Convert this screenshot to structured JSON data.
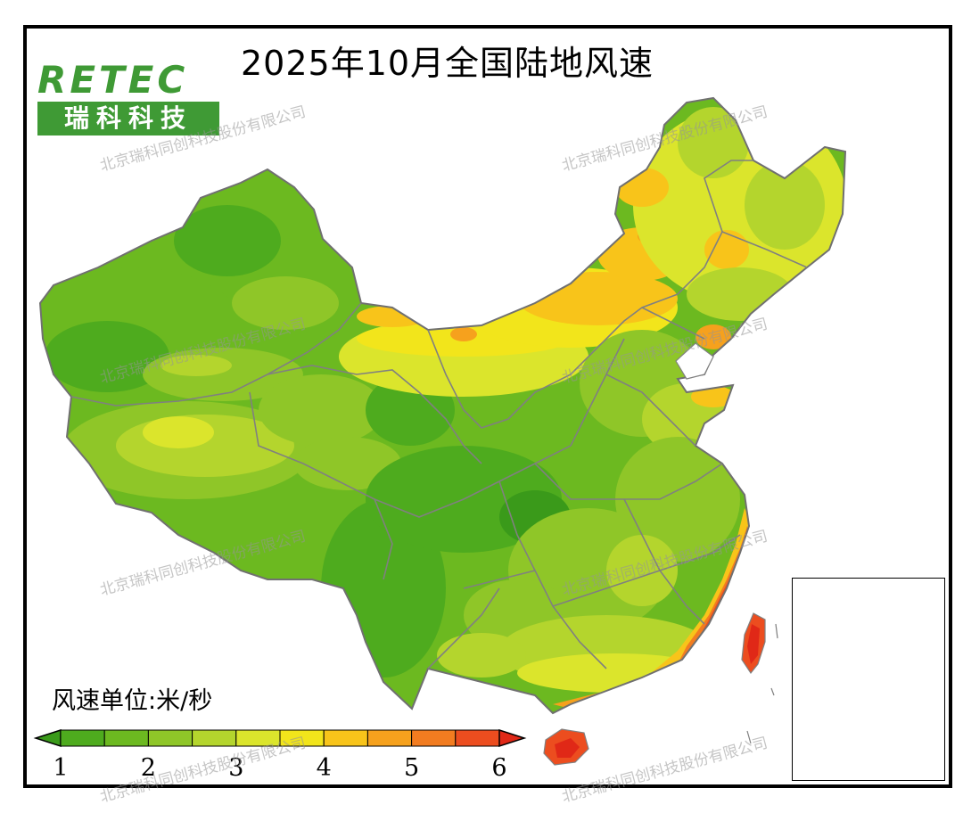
{
  "title": "2025年10月全国陆地风速",
  "logo": {
    "en": "RETEC",
    "cn": "瑞科科技"
  },
  "legend": {
    "unit_label": "风速单位:米/秒",
    "ticks": [
      "1",
      "2",
      "3",
      "4",
      "5",
      "6"
    ],
    "bins": [
      1,
      1.5,
      2,
      2.5,
      3,
      3.5,
      4,
      4.5,
      5,
      5.5,
      6
    ],
    "colors": [
      "#4eab1e",
      "#6cb920",
      "#8fc628",
      "#b4d52d",
      "#dbe52c",
      "#f2e51b",
      "#f8c41a",
      "#f6a11d",
      "#f27c20",
      "#ec4d1f"
    ],
    "under_color": "#3a9a1a",
    "over_color": "#e02817"
  },
  "watermark": "北京瑞科同创科技股份有限公司",
  "colors": {
    "border": "#808080",
    "frame": "#000000"
  }
}
